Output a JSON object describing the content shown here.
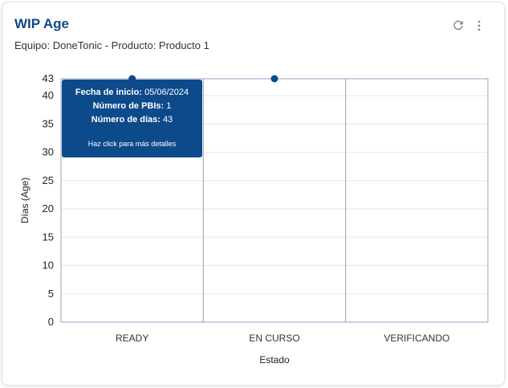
{
  "widget": {
    "title": "WIP Age",
    "subtitle": "Equipo: DoneTonic - Producto: Producto 1",
    "refresh_icon": "refresh-icon",
    "more_icon": "more-vertical-icon"
  },
  "tooltip": {
    "start_label": "Fecha de inicio:",
    "start_value": "05/06/2024",
    "pbis_label": "Número de PBIs:",
    "pbis_value": "1",
    "days_label": "Número de días:",
    "days_value": "43",
    "hint": "Haz click para más detalles"
  },
  "chart_data": {
    "type": "scatter",
    "categories": [
      "READY",
      "EN CURSO",
      "VERIFICANDO"
    ],
    "points": [
      {
        "category": "READY",
        "value": 43
      },
      {
        "category": "EN CURSO",
        "value": 43
      }
    ],
    "xlabel": "Estado",
    "ylabel": "Días (Age)",
    "ylim": [
      0,
      43
    ],
    "yticks": [
      0,
      5,
      10,
      15,
      20,
      25,
      30,
      35,
      40,
      43
    ],
    "grid": true,
    "point_color": "#0d4a8c",
    "grid_color": "#e6e6e6",
    "divider_color": "#9aa0c4"
  }
}
